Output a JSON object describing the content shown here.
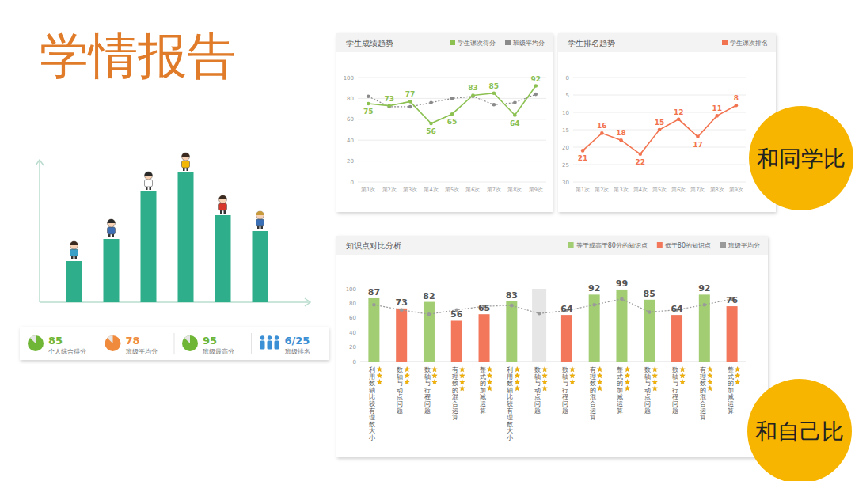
{
  "title": "学情报告",
  "badges": [
    "和同学比",
    "和自己比"
  ],
  "stats": [
    {
      "value": 85,
      "label": "个人综合得分",
      "color": "#6fb536"
    },
    {
      "value": 78,
      "label": "班级平均分",
      "color": "#f08a3c"
    },
    {
      "value": 95,
      "label": "班级最高分",
      "color": "#6fb536"
    },
    {
      "value": "6/25",
      "label": "班级排名",
      "color": "#3b8fd4"
    }
  ],
  "chart_data": [
    {
      "type": "bar",
      "categories": [
        null,
        null,
        null,
        null,
        null,
        null
      ],
      "values": [
        52,
        80,
        140,
        164,
        110,
        90
      ],
      "color": "#2fae8c",
      "ylim": [
        0,
        180
      ],
      "tick_labels": false
    },
    {
      "type": "line",
      "title": "学生成绩趋势",
      "categories": [
        "第1次",
        "第2次",
        "第3次",
        "第4次",
        "第5次",
        "第6次",
        "第7次",
        "第8次",
        "第9次"
      ],
      "series": [
        {
          "name": "学生课次得分",
          "color": "#8cc152",
          "values": [
            75,
            73,
            77,
            56,
            65,
            83,
            85,
            64,
            92
          ],
          "marker": "circle",
          "line_style": "solid",
          "data_labels": true
        },
        {
          "name": "班级平均分",
          "color": "#8a8a8a",
          "values": [
            82,
            72,
            72,
            76,
            80,
            82,
            74,
            76,
            84
          ],
          "marker": "circle",
          "line_style": "dotted"
        }
      ],
      "ylim": [
        0,
        100
      ],
      "yticks": [
        0,
        20,
        40,
        60,
        80,
        100
      ],
      "grid": true,
      "legend": "top-right"
    },
    {
      "type": "line",
      "title": "学生排名趋势",
      "categories": [
        "第1次",
        "第2次",
        "第3次",
        "第4次",
        "第5次",
        "第6次",
        "第7次",
        "第8次",
        "第9次"
      ],
      "series": [
        {
          "name": "学生课次排名",
          "color": "#f2734f",
          "values": [
            21,
            16,
            18,
            22,
            15,
            12,
            17,
            11,
            8
          ],
          "marker": "circle",
          "line_style": "solid",
          "data_labels": true
        }
      ],
      "ylim": [
        30,
        0
      ],
      "yticks": [
        30,
        25,
        20,
        15,
        10,
        5,
        0
      ],
      "grid": true,
      "legend": "top-right"
    },
    {
      "type": "bar",
      "title": "知识点对比分析",
      "categories": [
        "利用数轴比较有理数大小",
        "数轴与动点问题",
        "数轴与行程问题",
        "有理数的混合运算",
        "整式的加减运算",
        "利用数轴比较有理数大小",
        "数轴与动点问题",
        "数轴与行程问题",
        "有理数的混合运算",
        "整式的加减运算",
        "数轴与动点问题",
        "数轴与行程问题",
        "有理数的混合运算",
        "整式的加减运算"
      ],
      "series": [
        {
          "name": "等于或高于80分的知识点",
          "color": "#a3cd73",
          "values": [
            87,
            null,
            82,
            null,
            null,
            83,
            null,
            null,
            92,
            99,
            85,
            null,
            92,
            null
          ],
          "data_labels": true
        },
        {
          "name": "低于80的知识点",
          "color": "#f2775b",
          "values": [
            null,
            73,
            null,
            56,
            65,
            null,
            null,
            64,
            null,
            null,
            null,
            64,
            null,
            76
          ],
          "data_labels": true
        },
        {
          "name": "班级平均分",
          "type": "line",
          "color": "#9a9a9a",
          "values": [
            78,
            71,
            65,
            71,
            76,
            77,
            66,
            70,
            78,
            86,
            68,
            71,
            78,
            86
          ],
          "marker": "circle",
          "line_style": "dotted"
        }
      ],
      "stars": [
        3,
        3,
        3,
        4,
        4,
        4,
        4,
        3,
        4,
        4,
        4,
        3,
        4,
        3
      ],
      "ylim": [
        0,
        100
      ],
      "yticks": [
        0,
        20,
        40,
        60,
        80,
        100
      ],
      "grid": false,
      "legend": "top-right"
    }
  ]
}
